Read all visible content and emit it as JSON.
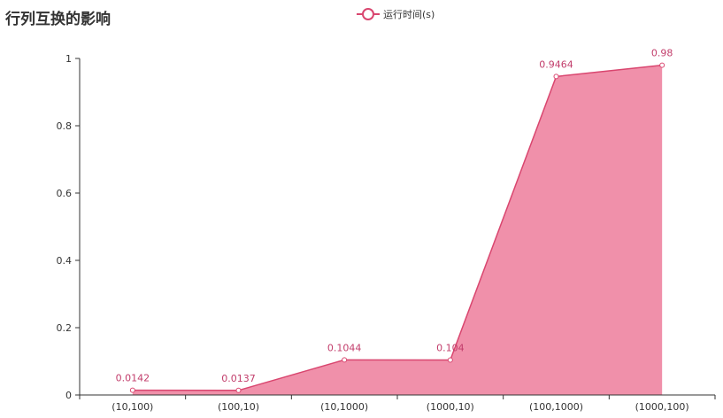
{
  "chart_data": {
    "type": "area",
    "title": "行列互换的影响",
    "categories": [
      "(10,100)",
      "(100,10)",
      "(10,1000)",
      "(1000,10)",
      "(100,1000)",
      "(1000,100)"
    ],
    "series": [
      {
        "name": "运行时间(s)",
        "values": [
          0.0142,
          0.0137,
          0.1044,
          0.104,
          0.9464,
          0.98
        ],
        "labels": [
          "0.0142",
          "0.0137",
          "0.1044",
          "0.104",
          "0.9464",
          "0.98"
        ]
      }
    ],
    "y_ticks": [
      "0",
      "0.2",
      "0.4",
      "0.6",
      "0.8",
      "1"
    ],
    "ylim": [
      0,
      1
    ],
    "grid": false,
    "legend_position": "top-center",
    "colors": {
      "line": "#d9466f",
      "area": "#f090aa",
      "label": "#c23d6b",
      "axis": "#333333"
    }
  }
}
